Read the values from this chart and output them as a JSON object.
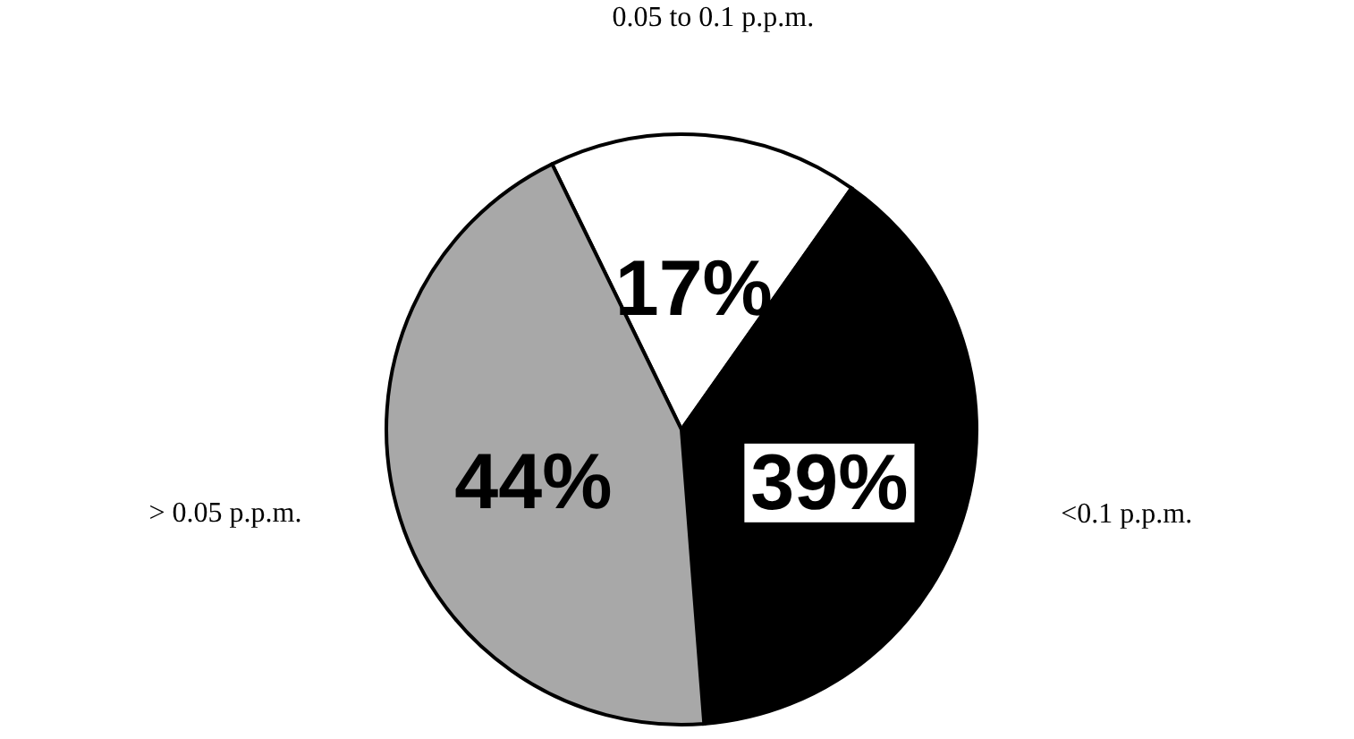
{
  "chart_data": {
    "type": "pie",
    "categories": [
      "0.05 to 0.1 p.p.m.",
      "<0.1 p.p.m.",
      "> 0.05 p.p.m."
    ],
    "values": [
      17,
      39,
      44
    ],
    "value_labels": [
      "17%",
      "39%",
      "44%"
    ],
    "colors": [
      "#ffffff",
      "#000000",
      "#a8a8a8"
    ]
  }
}
